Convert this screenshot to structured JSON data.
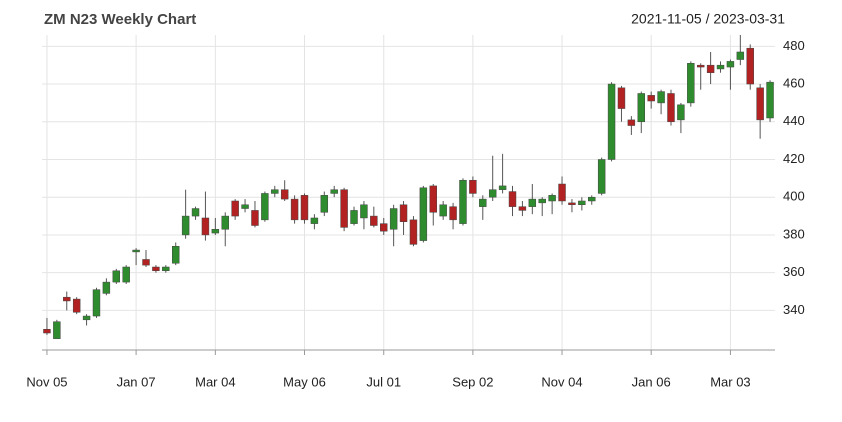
{
  "chart_data": {
    "type": "candlestick",
    "title": "ZM N23 Weekly Chart",
    "subtitle": "2021-11-05 / 2023-03-31",
    "up_color": "#2e8b2e",
    "down_color": "#b22222",
    "grid": true,
    "xlim": [
      -0.5,
      73.5
    ],
    "xticks": [
      {
        "value": 0,
        "label": "Nov 05"
      },
      {
        "value": 9,
        "label": "Jan 07"
      },
      {
        "value": 17,
        "label": "Mar 04"
      },
      {
        "value": 26,
        "label": "May 06"
      },
      {
        "value": 34,
        "label": "Jul 01"
      },
      {
        "value": 43,
        "label": "Sep 02"
      },
      {
        "value": 52,
        "label": "Nov 04"
      },
      {
        "value": 61,
        "label": "Jan 06"
      },
      {
        "value": 69,
        "label": "Mar 03"
      }
    ],
    "ylim": [
      319,
      486
    ],
    "yticks": [
      340,
      360,
      380,
      400,
      420,
      440,
      460,
      480
    ],
    "open": [
      330,
      325,
      347,
      346,
      335,
      337,
      349,
      355,
      355,
      371,
      367,
      363,
      361,
      365,
      380,
      390,
      389,
      381,
      383,
      398,
      394,
      393,
      388,
      402,
      404,
      399,
      401,
      386,
      392,
      402,
      404,
      386,
      389,
      390,
      386,
      383,
      396,
      388,
      377,
      406,
      390,
      395,
      386,
      409,
      395,
      400,
      404,
      403,
      395,
      395,
      397,
      398,
      407,
      397,
      396,
      398,
      402,
      420,
      458,
      441,
      440,
      454,
      450,
      455,
      441,
      450,
      470,
      470,
      468,
      469,
      473,
      479,
      458,
      442
    ],
    "close": [
      328,
      334,
      345,
      339,
      337,
      351,
      355,
      361,
      363,
      372,
      364,
      361,
      363,
      374,
      390,
      394,
      380,
      383,
      390,
      390,
      396,
      385,
      402,
      404,
      399,
      388,
      388,
      389,
      401,
      404,
      384,
      393,
      396,
      385,
      382,
      394,
      387,
      375,
      405,
      392,
      396,
      388,
      409,
      402,
      399,
      404,
      406,
      395,
      393,
      399,
      399,
      401,
      398,
      396,
      398,
      400,
      420,
      460,
      447,
      438,
      455,
      451,
      456,
      440,
      449,
      471,
      469,
      466,
      470,
      472,
      477,
      460,
      441,
      461
    ],
    "high": [
      336,
      335,
      350,
      347,
      338,
      352,
      357,
      362,
      364,
      373,
      372,
      364,
      364,
      376,
      404,
      395,
      403,
      389,
      392,
      399,
      399,
      398,
      403,
      406,
      409,
      401,
      402,
      391,
      403,
      406,
      405,
      395,
      398,
      395,
      389,
      396,
      398,
      390,
      406,
      407,
      398,
      397,
      410,
      411,
      401,
      422,
      423,
      406,
      398,
      407,
      400,
      402,
      411,
      399,
      400,
      401,
      421,
      461,
      459,
      443,
      456,
      456,
      457,
      457,
      450,
      472,
      471,
      477,
      472,
      473,
      486,
      481,
      460,
      462
    ],
    "low": [
      327,
      325,
      340,
      338,
      332,
      336,
      348,
      354,
      354,
      364,
      363,
      360,
      360,
      364,
      378,
      388,
      377,
      380,
      374,
      388,
      392,
      384,
      387,
      400,
      398,
      386,
      386,
      383,
      390,
      400,
      382,
      385,
      383,
      384,
      380,
      374,
      380,
      374,
      376,
      385,
      388,
      383,
      385,
      400,
      388,
      398,
      402,
      390,
      390,
      391,
      390,
      391,
      396,
      392,
      393,
      396,
      401,
      419,
      440,
      433,
      434,
      447,
      444,
      438,
      434,
      448,
      457,
      460,
      466,
      457,
      470,
      457,
      431,
      440
    ]
  }
}
